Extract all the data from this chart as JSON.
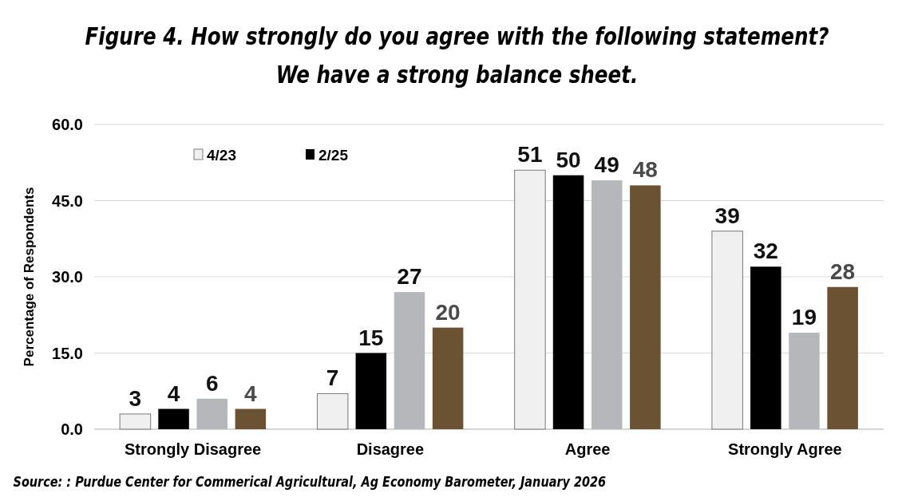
{
  "chart_data": {
    "type": "bar",
    "title": "Figure 4.  How strongly do you agree with the following statement?",
    "subtitle": "We have a strong balance sheet.",
    "ylabel": "Percentage of Respondents",
    "categories": [
      "Strongly Disagree",
      "Disagree",
      "Agree",
      "Strongly Agree"
    ],
    "series": [
      {
        "name": "4/23",
        "color": "#f0f0f0",
        "values": [
          3,
          7,
          51,
          39
        ]
      },
      {
        "name": "2/25",
        "color": "#000000",
        "values": [
          4,
          15,
          50,
          32
        ]
      },
      {
        "color": "#b5b7bb",
        "values": [
          6,
          27,
          49,
          19
        ]
      },
      {
        "color": "#6b5232",
        "values": [
          4,
          20,
          48,
          28
        ]
      }
    ],
    "ylim": [
      0,
      60
    ],
    "yticks": [
      {
        "value": 0,
        "label": "0.0"
      },
      {
        "value": 15,
        "label": "15.0"
      },
      {
        "value": 30,
        "label": "30.0"
      },
      {
        "value": 45,
        "label": "45.0"
      },
      {
        "value": 60,
        "label": "60.0"
      }
    ],
    "grid": "y",
    "legend": "top left",
    "data_labels": true,
    "annotations": [
      "Source: : Purdue Center for Commerical Agricultural, Ag Economy Barometer, January 2026"
    ]
  }
}
